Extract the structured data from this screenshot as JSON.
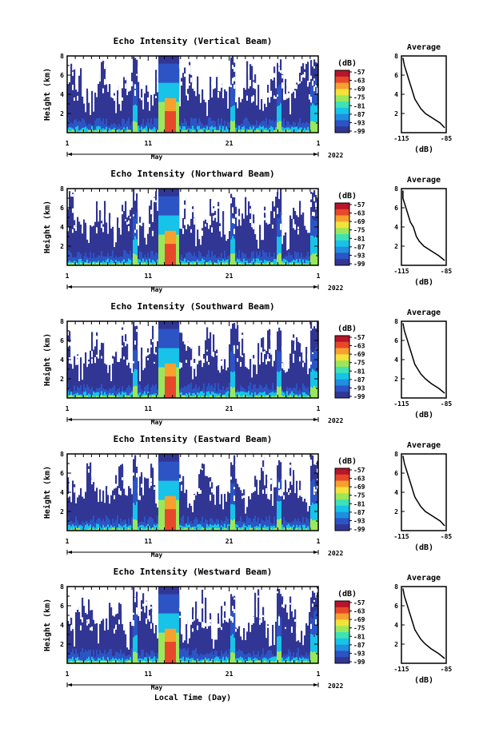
{
  "chart_data": [
    {
      "type": "heatmap",
      "title": "Echo Intensity (Vertical Beam)",
      "ylabel": "Height (km)",
      "xlabel": "",
      "x_tick_labels": [
        "1",
        "11",
        "21",
        "1"
      ],
      "x_range_label": "May",
      "year_label": "2022",
      "ylim": [
        0,
        8
      ],
      "y_ticks": [
        2,
        4,
        6,
        8
      ],
      "colorbar": {
        "unit": "(dB)",
        "ticks": [
          -57,
          -63,
          -69,
          -75,
          -81,
          -87,
          -93,
          -99
        ]
      },
      "profile": {
        "title": "Average",
        "xlabel": "(dB)",
        "xlim": [
          -115,
          -85
        ],
        "x_tick_labels": [
          "-115",
          "-85"
        ],
        "ylim": [
          0,
          8
        ],
        "y_ticks": [
          2,
          4,
          6,
          8
        ],
        "x": [
          -86,
          -89,
          -94,
          -99,
          -102,
          -104,
          -106,
          -107,
          -108,
          -109,
          -110,
          -111,
          -112,
          -113,
          -114
        ],
        "y": [
          0.5,
          1.0,
          1.5,
          2.0,
          2.5,
          3.0,
          3.5,
          4.0,
          4.5,
          5.0,
          5.5,
          6.0,
          6.5,
          7.0,
          7.8
        ]
      }
    },
    {
      "type": "heatmap",
      "title": "Echo Intensity (Northward Beam)",
      "ylabel": "Height (km)",
      "xlabel": "",
      "x_tick_labels": [
        "1",
        "11",
        "21",
        "1"
      ],
      "x_range_label": "May",
      "year_label": "2022",
      "ylim": [
        0,
        8
      ],
      "y_ticks": [
        2,
        4,
        6,
        8
      ],
      "colorbar": {
        "unit": "(dB)",
        "ticks": [
          -57,
          -63,
          -69,
          -75,
          -81,
          -87,
          -93,
          -99
        ]
      },
      "profile": {
        "title": "Average",
        "xlabel": "(dB)",
        "xlim": [
          -115,
          -85
        ],
        "x_tick_labels": [
          "-115",
          "-85"
        ],
        "ylim": [
          0,
          8
        ],
        "y_ticks": [
          2,
          4,
          6,
          8
        ],
        "x": [
          -86,
          -90,
          -95,
          -100,
          -103,
          -105,
          -106,
          -107,
          -109,
          -110,
          -111,
          -112,
          -113,
          -114,
          -114
        ],
        "y": [
          0.5,
          1.0,
          1.5,
          2.0,
          2.5,
          3.0,
          3.5,
          4.0,
          4.5,
          5.0,
          5.5,
          6.0,
          6.5,
          7.0,
          7.8
        ]
      }
    },
    {
      "type": "heatmap",
      "title": "Echo Intensity (Southward Beam)",
      "ylabel": "Height (km)",
      "xlabel": "",
      "x_tick_labels": [
        "1",
        "11",
        "21",
        "1"
      ],
      "x_range_label": "May",
      "year_label": "2022",
      "ylim": [
        0,
        8
      ],
      "y_ticks": [
        2,
        4,
        6,
        8
      ],
      "colorbar": {
        "unit": "(dB)",
        "ticks": [
          -57,
          -63,
          -69,
          -75,
          -81,
          -87,
          -93,
          -99
        ]
      },
      "profile": {
        "title": "Average",
        "xlabel": "(dB)",
        "xlim": [
          -115,
          -85
        ],
        "x_tick_labels": [
          "-115",
          "-85"
        ],
        "ylim": [
          0,
          8
        ],
        "y_ticks": [
          2,
          4,
          6,
          8
        ],
        "x": [
          -86,
          -90,
          -95,
          -99,
          -102,
          -104,
          -106,
          -107,
          -108,
          -109,
          -110,
          -111,
          -112,
          -113,
          -114
        ],
        "y": [
          0.5,
          1.0,
          1.5,
          2.0,
          2.5,
          3.0,
          3.5,
          4.0,
          4.5,
          5.0,
          5.5,
          6.0,
          6.5,
          7.0,
          7.8
        ]
      }
    },
    {
      "type": "heatmap",
      "title": "Echo Intensity (Eastward Beam)",
      "ylabel": "Height (km)",
      "xlabel": "",
      "x_tick_labels": [
        "1",
        "11",
        "21",
        "1"
      ],
      "x_range_label": "May",
      "year_label": "2022",
      "ylim": [
        0,
        8
      ],
      "y_ticks": [
        2,
        4,
        6,
        8
      ],
      "colorbar": {
        "unit": "(dB)",
        "ticks": [
          -57,
          -63,
          -69,
          -75,
          -81,
          -87,
          -93,
          -99
        ]
      },
      "profile": {
        "title": "Average",
        "xlabel": "(dB)",
        "xlim": [
          -115,
          -85
        ],
        "x_tick_labels": [
          "-115",
          "-85"
        ],
        "ylim": [
          0,
          8
        ],
        "y_ticks": [
          2,
          4,
          6,
          8
        ],
        "x": [
          -86,
          -89,
          -94,
          -99,
          -102,
          -104,
          -106,
          -107,
          -108,
          -109,
          -110,
          -111,
          -112,
          -113,
          -114
        ],
        "y": [
          0.5,
          1.0,
          1.5,
          2.0,
          2.5,
          3.0,
          3.5,
          4.0,
          4.5,
          5.0,
          5.5,
          6.0,
          6.5,
          7.0,
          7.8
        ]
      }
    },
    {
      "type": "heatmap",
      "title": "Echo Intensity (Westward Beam)",
      "ylabel": "Height (km)",
      "xlabel": "Local Time (Day)",
      "x_tick_labels": [
        "1",
        "11",
        "21",
        "1"
      ],
      "x_range_label": "May",
      "year_label": "2022",
      "ylim": [
        0,
        8
      ],
      "y_ticks": [
        2,
        4,
        6,
        8
      ],
      "colorbar": {
        "unit": "(dB)",
        "ticks": [
          -57,
          -63,
          -69,
          -75,
          -81,
          -87,
          -93,
          -99
        ]
      },
      "profile": {
        "title": "Average",
        "xlabel": "(dB)",
        "xlim": [
          -115,
          -85
        ],
        "x_tick_labels": [
          "-115",
          "-85"
        ],
        "ylim": [
          0,
          8
        ],
        "y_ticks": [
          2,
          4,
          6,
          8
        ],
        "x": [
          -86,
          -90,
          -95,
          -99,
          -102,
          -104,
          -106,
          -107,
          -108,
          -109,
          -110,
          -111,
          -112,
          -113,
          -114
        ],
        "y": [
          0.5,
          1.0,
          1.5,
          2.0,
          2.5,
          3.0,
          3.5,
          4.0,
          4.5,
          5.0,
          5.5,
          6.0,
          6.5,
          7.0,
          7.8
        ]
      }
    }
  ],
  "colormap": [
    "#313695",
    "#2c54c4",
    "#1f8fe0",
    "#17c3e8",
    "#3fe2b4",
    "#9ae85a",
    "#f3e23c",
    "#f7a02e",
    "#e8482a",
    "#b8142a"
  ]
}
